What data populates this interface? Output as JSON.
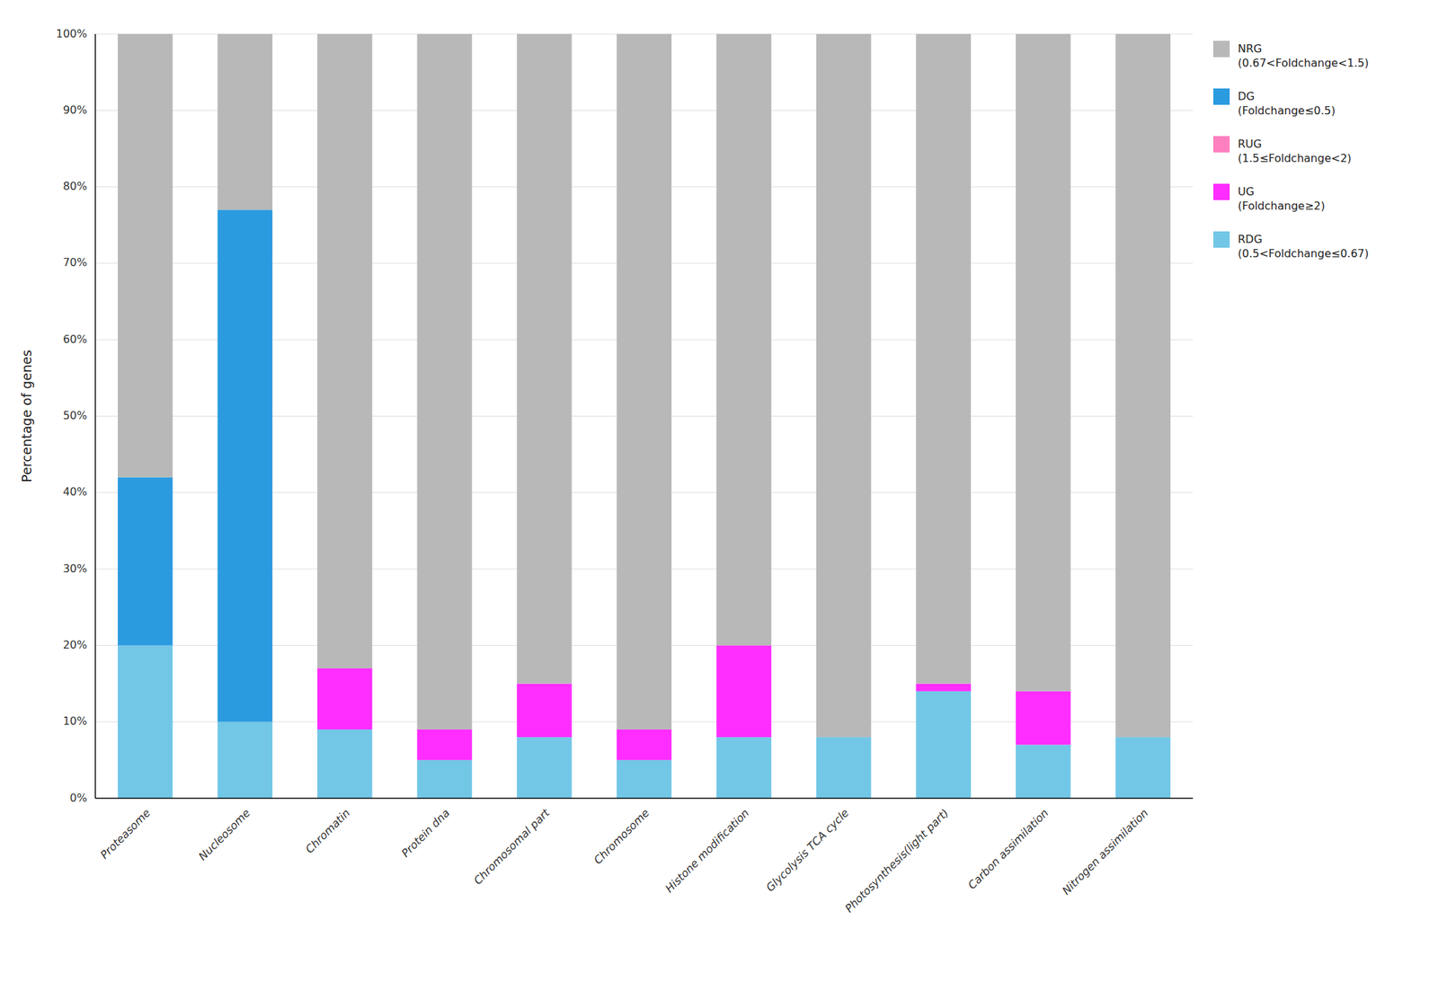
{
  "chart_data": {
    "type": "bar",
    "stacked": true,
    "categories": [
      "Proteasome",
      "Nucleosome",
      "Chromatin",
      "Protein dna",
      "Chromosomal part",
      "Chromosome",
      "Histone modification",
      "Glycolysis TCA cycle",
      "Photosynthesis(light part)",
      "Carbon assimilation",
      "Nitrogen assimilation"
    ],
    "series": [
      {
        "name": "RDG\n(0.5<Foldchange≤0.67)",
        "color": "#72c7e7",
        "values": [
          20,
          10,
          9,
          5,
          8,
          5,
          8,
          8,
          14,
          7,
          8
        ]
      },
      {
        "name": "UG\n(Foldchange≥2)",
        "color": "#ff2dff",
        "values": [
          0,
          0,
          8,
          4,
          7,
          4,
          12,
          0,
          1,
          7,
          0
        ]
      },
      {
        "name": "RUG\n(1.5≤Foldchange<2)",
        "color": "#ff80c0",
        "values": [
          0,
          0,
          0,
          0,
          0,
          0,
          0,
          0,
          0,
          0,
          0
        ]
      },
      {
        "name": "DG\n(Foldchange≤0.5)",
        "color": "#2b9be0",
        "values": [
          22,
          67,
          0,
          0,
          0,
          0,
          0,
          0,
          0,
          0,
          0
        ]
      },
      {
        "name": "NRG\n(0.67<Foldchange<1.5)",
        "color": "#b8b8b8",
        "values": [
          58,
          23,
          83,
          91,
          85,
          91,
          80,
          92,
          85,
          86,
          92
        ]
      }
    ],
    "ylabel": "Percentage of genes",
    "ylim": [
      0,
      100
    ],
    "yticks": [
      {
        "value": 0,
        "label": "0%"
      },
      {
        "value": 10,
        "label": "10%"
      },
      {
        "value": 20,
        "label": "20%"
      },
      {
        "value": 30,
        "label": "30%"
      },
      {
        "value": 40,
        "label": "40%"
      },
      {
        "value": 50,
        "label": "50%"
      },
      {
        "value": 60,
        "label": "60%"
      },
      {
        "value": 70,
        "label": "70%"
      },
      {
        "value": 80,
        "label": "80%"
      },
      {
        "value": 90,
        "label": "90%"
      },
      {
        "value": 100,
        "label": "100%"
      }
    ],
    "grid": true,
    "legend": "right"
  }
}
